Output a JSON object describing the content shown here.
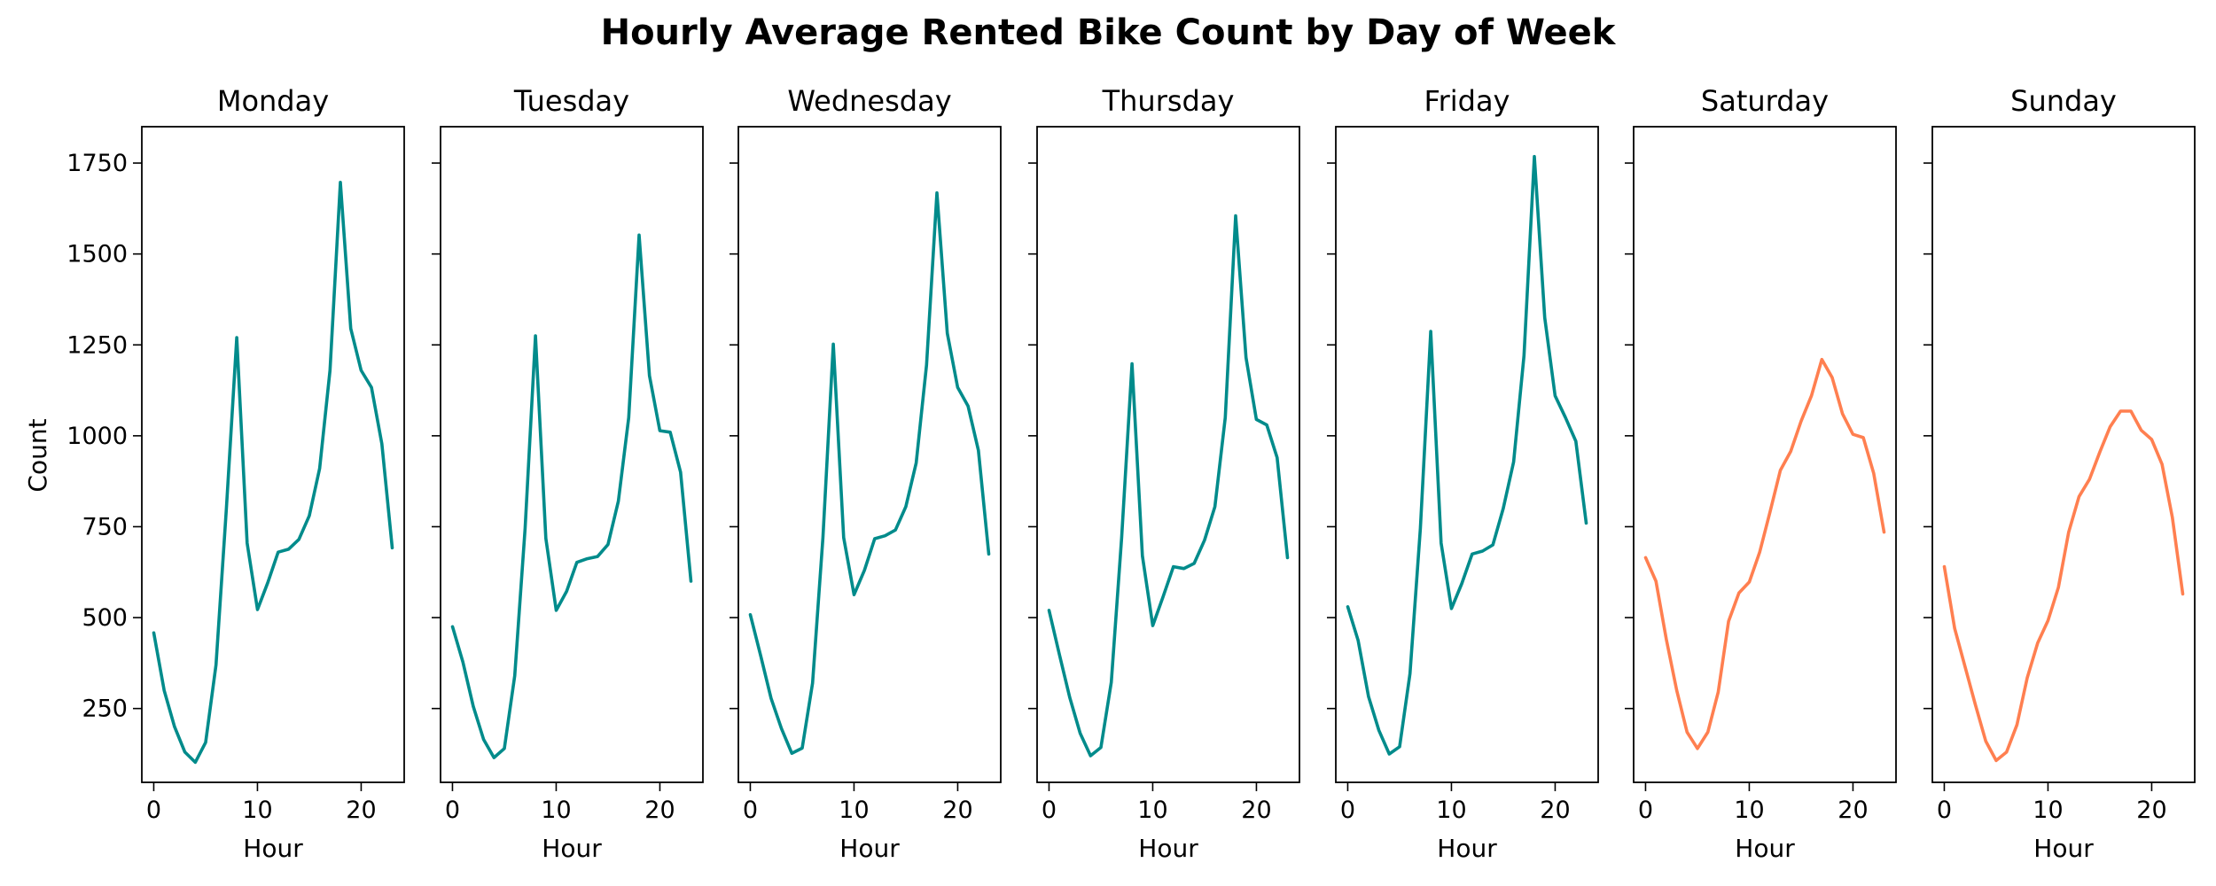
{
  "chart_data": {
    "type": "line",
    "title": "Hourly Average Rented Bike Count by Day of Week",
    "xlabel": "Hour",
    "ylabel": "Count",
    "xlim": [
      -1.15,
      24.15
    ],
    "ylim": [
      47,
      1850
    ],
    "xticks": [
      0,
      10,
      20
    ],
    "yticks": [
      250,
      500,
      750,
      1000,
      1250,
      1500,
      1750
    ],
    "sharey": true,
    "grid": false,
    "colors": {
      "weekday": "#008b8b",
      "weekend": "#ff7f50"
    },
    "x": [
      0,
      1,
      2,
      3,
      4,
      5,
      6,
      7,
      8,
      9,
      10,
      11,
      12,
      13,
      14,
      15,
      16,
      17,
      18,
      19,
      20,
      21,
      22,
      23
    ],
    "series": [
      {
        "name": "Monday",
        "color_key": "weekday",
        "values": [
          458,
          300,
          200,
          130,
          102,
          157,
          370,
          800,
          1270,
          705,
          522,
          597,
          680,
          688,
          715,
          780,
          910,
          1180,
          1697,
          1295,
          1180,
          1133,
          978,
          692
        ]
      },
      {
        "name": "Tuesday",
        "color_key": "weekday",
        "values": [
          475,
          378,
          256,
          165,
          115,
          140,
          340,
          745,
          1275,
          718,
          520,
          572,
          652,
          662,
          668,
          701,
          820,
          1050,
          1552,
          1165,
          1014,
          1010,
          900,
          600
        ]
      },
      {
        "name": "Wednesday",
        "color_key": "weekday",
        "values": [
          508,
          395,
          278,
          195,
          127,
          141,
          320,
          720,
          1252,
          720,
          563,
          630,
          717,
          725,
          741,
          805,
          925,
          1195,
          1668,
          1282,
          1133,
          1082,
          960,
          675
        ]
      },
      {
        "name": "Thursday",
        "color_key": "weekday",
        "values": [
          520,
          398,
          280,
          182,
          120,
          143,
          322,
          720,
          1198,
          670,
          478,
          558,
          640,
          635,
          649,
          713,
          805,
          1050,
          1605,
          1215,
          1045,
          1030,
          940,
          665
        ]
      },
      {
        "name": "Friday",
        "color_key": "weekday",
        "values": [
          530,
          437,
          283,
          190,
          125,
          145,
          346,
          745,
          1287,
          705,
          525,
          594,
          675,
          683,
          700,
          800,
          928,
          1220,
          1768,
          1325,
          1110,
          1050,
          985,
          760
        ]
      },
      {
        "name": "Saturday",
        "color_key": "weekend",
        "values": [
          665,
          600,
          440,
          300,
          185,
          140,
          185,
          295,
          490,
          568,
          598,
          680,
          790,
          905,
          957,
          1040,
          1110,
          1210,
          1160,
          1060,
          1004,
          995,
          897,
          735
        ]
      },
      {
        "name": "Sunday",
        "color_key": "weekend",
        "values": [
          640,
          470,
          365,
          260,
          160,
          107,
          130,
          205,
          335,
          430,
          492,
          583,
          735,
          833,
          880,
          955,
          1025,
          1068,
          1068,
          1015,
          990,
          922,
          775,
          565
        ]
      }
    ]
  }
}
